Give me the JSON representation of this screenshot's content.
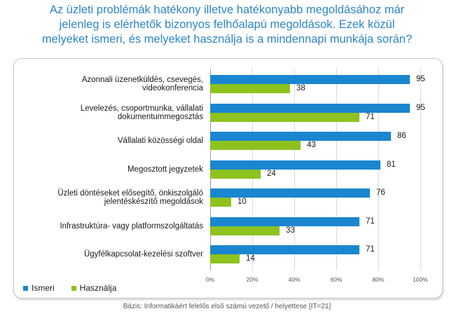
{
  "title_lines": [
    "Az üzleti problémák hatékony illetve hatékonyabb megoldásához már",
    "jelenleg is elérhetők bizonyos felhőalapú megoldások. Ezek közül",
    "melyeket ismeri, és melyeket használja is a mindennapi munkája során?"
  ],
  "footer": "Bázis: Informatikáért felelős első számú vezető / helyettese [IT=21]",
  "colors": {
    "title": "#2e86c8",
    "ismeri": "#1a86d0",
    "hasznalja": "#8dc21f"
  },
  "chart_data": {
    "type": "bar",
    "orientation": "horizontal",
    "categories": [
      [
        "Azonnali üzenetküldés, csevegés,",
        "videokonferencia"
      ],
      [
        "Levelezés, csoportmunka, vállalati",
        "dokumentummegosztás"
      ],
      [
        "Vállalati közösségi oldal"
      ],
      [
        "Megosztott jegyzetek"
      ],
      [
        "Üzleti döntéseket elősegítő, önkiszolgáló",
        "jelentéskészítő megoldások"
      ],
      [
        "Infrastruktúra- vagy platformszolgáltatás"
      ],
      [
        "Ügyfélkapcsolat-kezelési szoftver"
      ]
    ],
    "series": [
      {
        "name": "Ismeri",
        "values": [
          95,
          95,
          86,
          81,
          76,
          71,
          71
        ]
      },
      {
        "name": "Használja",
        "values": [
          38,
          71,
          43,
          24,
          10,
          33,
          14
        ]
      }
    ],
    "xlim": [
      0,
      100
    ],
    "ticks": [
      "0%",
      "20%",
      "40%",
      "60%",
      "80%",
      "100%"
    ],
    "xlabel": "",
    "ylabel": "",
    "legend": "bottom-left",
    "grid": true
  }
}
